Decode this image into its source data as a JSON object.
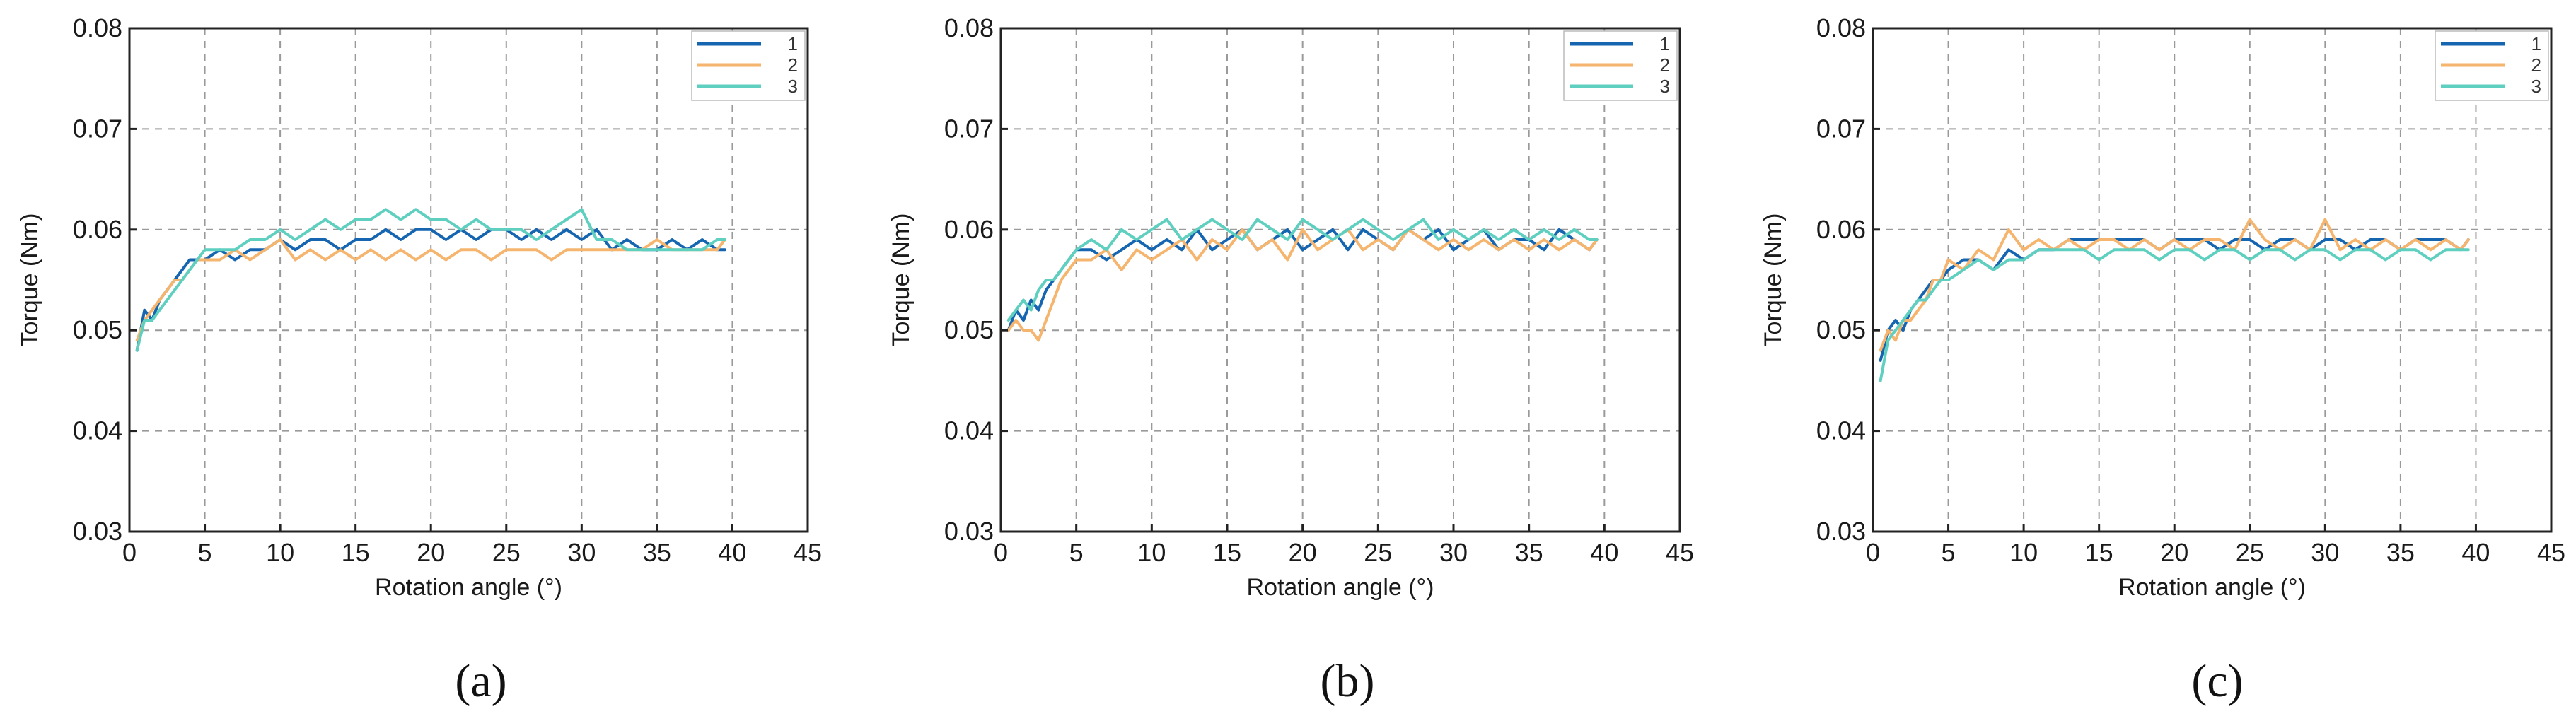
{
  "chart_data": [
    {
      "type": "line",
      "panel_label": "(a)",
      "xlabel": "Rotation angle (°)",
      "ylabel": "Torque (Nm)",
      "xlim": [
        0,
        45
      ],
      "ylim": [
        0.03,
        0.08
      ],
      "x_ticks": [
        "0",
        "5",
        "10",
        "15",
        "20",
        "25",
        "30",
        "35",
        "40",
        "45"
      ],
      "y_ticks": [
        "0.03",
        "0.04",
        "0.05",
        "0.06",
        "0.07",
        "0.08"
      ],
      "grid": true,
      "legend_position": "top-right",
      "x": [
        0.5,
        1,
        1.5,
        2,
        2.5,
        3,
        3.5,
        4,
        4.5,
        5,
        6,
        7,
        8,
        9,
        10,
        11,
        12,
        13,
        14,
        15,
        16,
        17,
        18,
        19,
        20,
        21,
        22,
        23,
        24,
        25,
        26,
        27,
        28,
        29,
        30,
        31,
        32,
        33,
        34,
        35,
        36,
        37,
        38,
        39,
        39.5
      ],
      "series": [
        {
          "name": "1",
          "color": "#1565b0",
          "values": [
            0.048,
            0.052,
            0.051,
            0.053,
            0.054,
            0.055,
            0.056,
            0.057,
            0.057,
            0.057,
            0.058,
            0.057,
            0.058,
            0.058,
            0.059,
            0.058,
            0.059,
            0.059,
            0.058,
            0.059,
            0.059,
            0.06,
            0.059,
            0.06,
            0.06,
            0.059,
            0.06,
            0.059,
            0.06,
            0.06,
            0.059,
            0.06,
            0.059,
            0.06,
            0.059,
            0.06,
            0.058,
            0.059,
            0.058,
            0.058,
            0.059,
            0.058,
            0.059,
            0.058,
            0.058
          ]
        },
        {
          "name": "2",
          "color": "#f5b56e",
          "values": [
            0.049,
            0.051,
            0.052,
            0.053,
            0.054,
            0.055,
            0.055,
            0.056,
            0.057,
            0.057,
            0.057,
            0.058,
            0.057,
            0.058,
            0.059,
            0.057,
            0.058,
            0.057,
            0.058,
            0.057,
            0.058,
            0.057,
            0.058,
            0.057,
            0.058,
            0.057,
            0.058,
            0.058,
            0.057,
            0.058,
            0.058,
            0.058,
            0.057,
            0.058,
            0.058,
            0.058,
            0.058,
            0.058,
            0.058,
            0.059,
            0.058,
            0.058,
            0.058,
            0.058,
            0.059
          ]
        },
        {
          "name": "3",
          "color": "#5fcfc0",
          "values": [
            0.048,
            0.051,
            0.051,
            0.052,
            0.053,
            0.054,
            0.055,
            0.056,
            0.057,
            0.058,
            0.058,
            0.058,
            0.059,
            0.059,
            0.06,
            0.059,
            0.06,
            0.061,
            0.06,
            0.061,
            0.061,
            0.062,
            0.061,
            0.062,
            0.061,
            0.061,
            0.06,
            0.061,
            0.06,
            0.06,
            0.06,
            0.059,
            0.06,
            0.061,
            0.062,
            0.059,
            0.059,
            0.058,
            0.058,
            0.058,
            0.058,
            0.058,
            0.058,
            0.059,
            0.059
          ]
        }
      ]
    },
    {
      "type": "line",
      "panel_label": "(b)",
      "xlabel": "Rotation angle (°)",
      "ylabel": "Torque (Nm)",
      "xlim": [
        0,
        45
      ],
      "ylim": [
        0.03,
        0.08
      ],
      "x_ticks": [
        "0",
        "5",
        "10",
        "15",
        "20",
        "25",
        "30",
        "35",
        "40",
        "45"
      ],
      "y_ticks": [
        "0.03",
        "0.04",
        "0.05",
        "0.06",
        "0.07",
        "0.08"
      ],
      "grid": true,
      "legend_position": "top-right",
      "x": [
        0.5,
        1,
        1.5,
        2,
        2.5,
        3,
        3.5,
        4,
        4.5,
        5,
        6,
        7,
        8,
        9,
        10,
        11,
        12,
        13,
        14,
        15,
        16,
        17,
        18,
        19,
        20,
        21,
        22,
        23,
        24,
        25,
        26,
        27,
        28,
        29,
        30,
        31,
        32,
        33,
        34,
        35,
        36,
        37,
        38,
        39,
        39.5
      ],
      "series": [
        {
          "name": "1",
          "color": "#1565b0",
          "values": [
            0.05,
            0.052,
            0.051,
            0.053,
            0.052,
            0.054,
            0.055,
            0.056,
            0.057,
            0.058,
            0.058,
            0.057,
            0.058,
            0.059,
            0.058,
            0.059,
            0.058,
            0.06,
            0.058,
            0.059,
            0.06,
            0.058,
            0.059,
            0.06,
            0.058,
            0.059,
            0.06,
            0.058,
            0.06,
            0.059,
            0.058,
            0.06,
            0.059,
            0.06,
            0.058,
            0.059,
            0.06,
            0.058,
            0.059,
            0.059,
            0.058,
            0.06,
            0.059,
            0.058,
            0.059
          ]
        },
        {
          "name": "2",
          "color": "#f5b56e",
          "values": [
            0.05,
            0.051,
            0.05,
            0.05,
            0.049,
            0.051,
            0.053,
            0.055,
            0.056,
            0.057,
            0.057,
            0.058,
            0.056,
            0.058,
            0.057,
            0.058,
            0.059,
            0.057,
            0.059,
            0.058,
            0.06,
            0.058,
            0.059,
            0.057,
            0.06,
            0.058,
            0.059,
            0.06,
            0.058,
            0.059,
            0.058,
            0.06,
            0.059,
            0.058,
            0.059,
            0.058,
            0.059,
            0.058,
            0.059,
            0.058,
            0.059,
            0.058,
            0.059,
            0.058,
            0.059
          ]
        },
        {
          "name": "3",
          "color": "#5fcfc0",
          "values": [
            0.051,
            0.052,
            0.053,
            0.052,
            0.054,
            0.055,
            0.055,
            0.056,
            0.057,
            0.058,
            0.059,
            0.058,
            0.06,
            0.059,
            0.06,
            0.061,
            0.059,
            0.06,
            0.061,
            0.06,
            0.059,
            0.061,
            0.06,
            0.059,
            0.061,
            0.06,
            0.059,
            0.06,
            0.061,
            0.06,
            0.059,
            0.06,
            0.061,
            0.059,
            0.06,
            0.059,
            0.06,
            0.059,
            0.06,
            0.059,
            0.06,
            0.059,
            0.06,
            0.059,
            0.059
          ]
        }
      ]
    },
    {
      "type": "line",
      "panel_label": "(c)",
      "xlabel": "Rotation angle (°)",
      "ylabel": "Torque (Nm)",
      "xlim": [
        0,
        45
      ],
      "ylim": [
        0.03,
        0.08
      ],
      "x_ticks": [
        "0",
        "5",
        "10",
        "15",
        "20",
        "25",
        "30",
        "35",
        "40",
        "45"
      ],
      "y_ticks": [
        "0.03",
        "0.04",
        "0.05",
        "0.06",
        "0.07",
        "0.08"
      ],
      "grid": true,
      "legend_position": "top-right",
      "x": [
        0.5,
        1,
        1.5,
        2,
        2.5,
        3,
        3.5,
        4,
        4.5,
        5,
        6,
        7,
        8,
        9,
        10,
        11,
        12,
        13,
        14,
        15,
        16,
        17,
        18,
        19,
        20,
        21,
        22,
        23,
        24,
        25,
        26,
        27,
        28,
        29,
        30,
        31,
        32,
        33,
        34,
        35,
        36,
        37,
        38,
        39,
        39.5
      ],
      "series": [
        {
          "name": "1",
          "color": "#1565b0",
          "values": [
            0.047,
            0.05,
            0.051,
            0.05,
            0.052,
            0.053,
            0.054,
            0.055,
            0.055,
            0.056,
            0.057,
            0.057,
            0.056,
            0.058,
            0.057,
            0.058,
            0.058,
            0.059,
            0.059,
            0.059,
            0.059,
            0.059,
            0.059,
            0.058,
            0.059,
            0.059,
            0.059,
            0.058,
            0.059,
            0.059,
            0.058,
            0.059,
            0.059,
            0.058,
            0.059,
            0.059,
            0.058,
            0.059,
            0.059,
            0.058,
            0.059,
            0.059,
            0.059,
            0.058,
            0.059
          ]
        },
        {
          "name": "2",
          "color": "#f5b56e",
          "values": [
            0.048,
            0.05,
            0.049,
            0.051,
            0.051,
            0.052,
            0.053,
            0.055,
            0.055,
            0.057,
            0.056,
            0.058,
            0.057,
            0.06,
            0.058,
            0.059,
            0.058,
            0.059,
            0.058,
            0.059,
            0.059,
            0.058,
            0.059,
            0.058,
            0.059,
            0.058,
            0.059,
            0.059,
            0.058,
            0.061,
            0.059,
            0.058,
            0.059,
            0.058,
            0.061,
            0.058,
            0.059,
            0.058,
            0.059,
            0.058,
            0.059,
            0.058,
            0.059,
            0.058,
            0.059
          ]
        },
        {
          "name": "3",
          "color": "#5fcfc0",
          "values": [
            0.045,
            0.049,
            0.05,
            0.051,
            0.052,
            0.053,
            0.053,
            0.054,
            0.055,
            0.055,
            0.056,
            0.057,
            0.056,
            0.057,
            0.057,
            0.058,
            0.058,
            0.058,
            0.058,
            0.057,
            0.058,
            0.058,
            0.058,
            0.057,
            0.058,
            0.058,
            0.057,
            0.058,
            0.058,
            0.057,
            0.058,
            0.058,
            0.057,
            0.058,
            0.058,
            0.057,
            0.058,
            0.058,
            0.057,
            0.058,
            0.058,
            0.057,
            0.058,
            0.058,
            0.058
          ]
        }
      ]
    }
  ]
}
